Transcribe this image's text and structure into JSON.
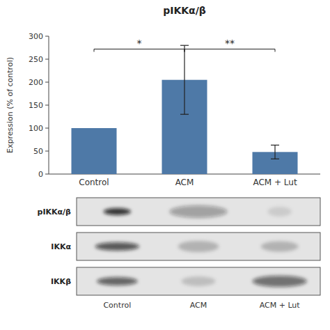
{
  "chart_data": [
    {
      "type": "bar",
      "title": "pIKKα/β",
      "categories": [
        "Control",
        "ACM",
        "ACM + Lut"
      ],
      "values": [
        100,
        205,
        48
      ],
      "errors": [
        0,
        75,
        15
      ],
      "ylabel": "Expression (% of control)",
      "ylim": [
        0,
        300
      ],
      "yticks": [
        0,
        50,
        100,
        150,
        200,
        250,
        300
      ],
      "grid": false,
      "annotations": [
        {
          "label": "*",
          "from": "Control",
          "to": "ACM",
          "y": 272
        },
        {
          "label": "**",
          "from": "ACM",
          "to": "ACM + Lut",
          "y": 272
        }
      ]
    },
    {
      "type": "blot",
      "rows": [
        "pIKKα/β",
        "IKKα",
        "IKKβ"
      ],
      "categories": [
        "Control",
        "ACM",
        "ACM + Lut"
      ],
      "cells": [
        [
          [
            0.75,
            0.4,
            0.0
          ],
          [
            0.3,
            0.85,
            0.4
          ],
          [
            0.1,
            0.35,
            0.2
          ]
        ],
        [
          [
            0.6,
            0.65,
            0.1
          ],
          [
            0.2,
            0.6,
            0.3
          ],
          [
            0.2,
            0.55,
            0.25
          ]
        ],
        [
          [
            0.55,
            0.6,
            0.1
          ],
          [
            0.15,
            0.5,
            0.2
          ],
          [
            0.5,
            0.8,
            0.3
          ]
        ]
      ]
    }
  ]
}
